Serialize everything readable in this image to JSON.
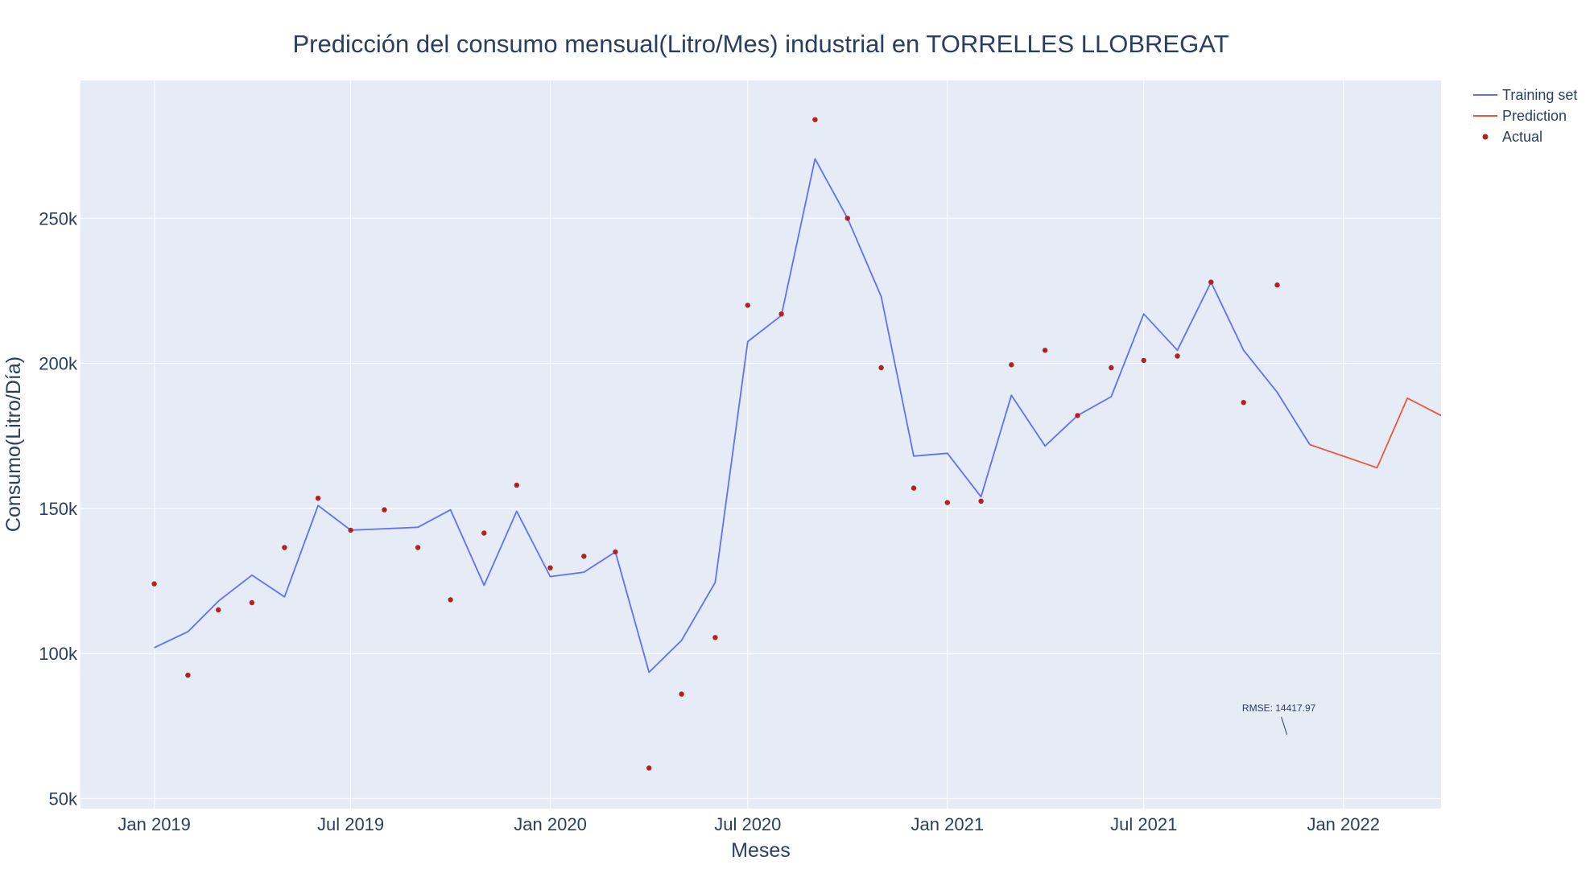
{
  "chart_data": {
    "type": "line",
    "title": "Predicción del consumo mensual(Litro/Mes) industrial en TORRELLES LLOBREGAT",
    "xlabel": "Meses",
    "ylabel": "Consumo(Litro/Día)",
    "x_tick_labels": [
      "Jan 2019",
      "Jul 2019",
      "Jan 2020",
      "Jul 2020",
      "Jan 2021",
      "Jul 2021",
      "Jan 2022"
    ],
    "y_tick_labels": [
      "50k",
      "100k",
      "150k",
      "200k",
      "250k"
    ],
    "y_ticks": [
      50000,
      100000,
      150000,
      200000,
      250000
    ],
    "xlim": [
      "2018-10-25",
      "2022-04-01"
    ],
    "ylim": [
      46500,
      297500
    ],
    "grid": true,
    "legend_position": "top-right",
    "colors": {
      "background": "#e5ecf6",
      "grid": "#ffffff",
      "training": "#636efa",
      "prediction": "#ef553b",
      "actual": "#b22222"
    },
    "annotation": {
      "text": "RMSE: 14417.97",
      "x": "2021-11-10",
      "y": 72000
    },
    "series": [
      {
        "name": "Training set",
        "mode": "line",
        "x": [
          "2019-01-01",
          "2019-02-01",
          "2019-03-01",
          "2019-04-01",
          "2019-05-01",
          "2019-06-01",
          "2019-07-01",
          "2019-08-01",
          "2019-09-01",
          "2019-10-01",
          "2019-11-01",
          "2019-12-01",
          "2020-01-01",
          "2020-02-01",
          "2020-03-01",
          "2020-04-01",
          "2020-05-01",
          "2020-06-01",
          "2020-07-01",
          "2020-08-01",
          "2020-09-01",
          "2020-10-01",
          "2020-11-01",
          "2020-12-01",
          "2021-01-01",
          "2021-02-01",
          "2021-03-01",
          "2021-04-01",
          "2021-05-01",
          "2021-06-01",
          "2021-07-01",
          "2021-08-01",
          "2021-09-01",
          "2021-10-01",
          "2021-11-01",
          "2021-12-01"
        ],
        "values": [
          102000,
          107500,
          118000,
          127000,
          119500,
          151000,
          142500,
          143000,
          143500,
          149500,
          123500,
          149000,
          126500,
          128000,
          135000,
          93500,
          104500,
          124500,
          207500,
          216500,
          270500,
          250000,
          223000,
          168000,
          169000,
          154000,
          189000,
          171500,
          182000,
          188500,
          217000,
          204500,
          228000,
          204500,
          190000,
          172000
        ]
      },
      {
        "name": "Prediction",
        "mode": "line",
        "x": [
          "2021-12-01",
          "2022-01-01",
          "2022-02-01",
          "2022-03-01",
          "2022-04-01"
        ],
        "values": [
          172000,
          168000,
          164000,
          188000,
          182000
        ]
      },
      {
        "name": "Actual",
        "mode": "markers",
        "x": [
          "2019-01-01",
          "2019-02-01",
          "2019-03-01",
          "2019-04-01",
          "2019-05-01",
          "2019-06-01",
          "2019-07-01",
          "2019-08-01",
          "2019-09-01",
          "2019-10-01",
          "2019-11-01",
          "2019-12-01",
          "2020-01-01",
          "2020-02-01",
          "2020-03-01",
          "2020-04-01",
          "2020-05-01",
          "2020-06-01",
          "2020-07-01",
          "2020-08-01",
          "2020-09-01",
          "2020-10-01",
          "2020-11-01",
          "2020-12-01",
          "2021-01-01",
          "2021-02-01",
          "2021-03-01",
          "2021-04-01",
          "2021-05-01",
          "2021-06-01",
          "2021-07-01",
          "2021-08-01",
          "2021-09-01",
          "2021-10-01",
          "2021-11-01"
        ],
        "values": [
          124000,
          92500,
          115000,
          117500,
          136500,
          153500,
          142500,
          149500,
          136500,
          118500,
          141500,
          158000,
          129500,
          133500,
          135000,
          60500,
          86000,
          105500,
          220000,
          217000,
          284000,
          250000,
          198500,
          157000,
          152000,
          152500,
          199500,
          204500,
          182000,
          198500,
          201000,
          202500,
          228000,
          186500,
          227000
        ]
      }
    ]
  }
}
